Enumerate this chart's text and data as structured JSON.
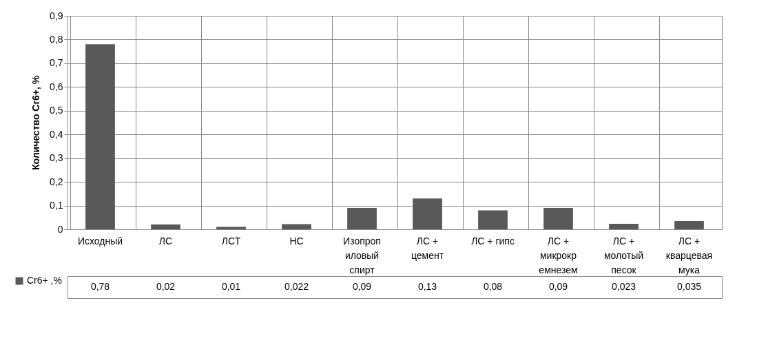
{
  "chart_data": {
    "type": "bar",
    "ylabel": "Количество Cr6+, %",
    "categories": [
      "Исходный",
      "ЛС",
      "ЛСТ",
      "НС",
      "Изопропиловый спирт",
      "ЛС + цемент",
      "ЛС + гипс",
      "ЛС + микрокремнезем",
      "ЛС + молотый песок",
      "ЛС + кварцевая мука"
    ],
    "series": [
      {
        "name": "Cr6+ ,%",
        "color": "#595959",
        "values": [
          0.78,
          0.02,
          0.01,
          0.022,
          0.09,
          0.13,
          0.08,
          0.09,
          0.023,
          0.035
        ],
        "value_labels": [
          "0,78",
          "0,02",
          "0,01",
          "0,022",
          "0,09",
          "0,13",
          "0,08",
          "0,09",
          "0,023",
          "0,035"
        ]
      }
    ],
    "ylim": [
      0,
      0.9
    ],
    "yticks": [
      0,
      {
        "value": 0.1,
        "label": "0,1"
      },
      {
        "value": 0.2,
        "label": "0,2"
      },
      {
        "value": 0.3,
        "label": "0,3"
      },
      {
        "value": 0.4,
        "label": "0,4"
      },
      {
        "value": 0.5,
        "label": "0,5"
      },
      {
        "value": 0.6,
        "label": "0,6"
      },
      {
        "value": 0.7,
        "label": "0,7"
      },
      {
        "value": 0.8,
        "label": "0,8"
      },
      {
        "value": 0.9,
        "label": "0,9"
      }
    ],
    "grid": "y",
    "legend": "bottom left"
  }
}
